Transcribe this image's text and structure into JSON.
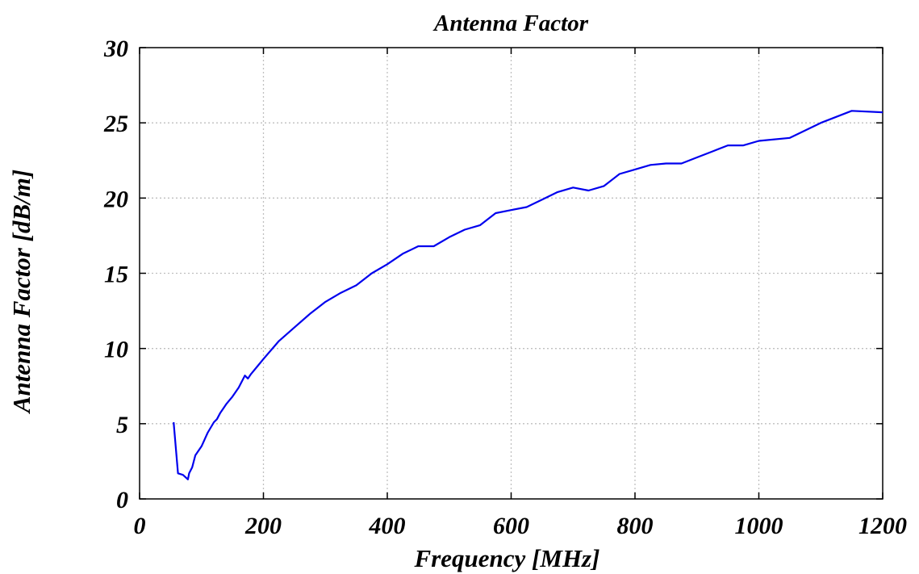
{
  "chart_data": {
    "type": "line",
    "title": "Antenna Factor",
    "xlabel": "Frequency [MHz]",
    "ylabel": "Antenna Factor [dB/m]",
    "xlim": [
      0,
      1200
    ],
    "ylim": [
      0,
      30
    ],
    "xticks": [
      0,
      200,
      400,
      600,
      800,
      1000,
      1200
    ],
    "yticks": [
      0,
      5,
      10,
      15,
      20,
      25,
      30
    ],
    "xtick_labels": [
      "0",
      "200",
      "400",
      "600",
      "800",
      "1000",
      "1200"
    ],
    "ytick_labels": [
      "0",
      "5",
      "10",
      "15",
      "20",
      "25",
      "30"
    ],
    "grid": true,
    "legend": "none",
    "series": [
      {
        "color": "#0000ee",
        "x": [
          55,
          62,
          70,
          78,
          80,
          85,
          90,
          100,
          110,
          120,
          125,
          130,
          140,
          150,
          160,
          170,
          175,
          180,
          190,
          200,
          225,
          250,
          275,
          300,
          325,
          350,
          375,
          400,
          425,
          450,
          475,
          500,
          525,
          550,
          575,
          600,
          625,
          650,
          675,
          700,
          725,
          750,
          775,
          800,
          825,
          850,
          875,
          900,
          925,
          950,
          975,
          1000,
          1050,
          1100,
          1150,
          1200
        ],
        "y": [
          5.1,
          1.7,
          1.6,
          1.3,
          1.7,
          2.1,
          2.9,
          3.5,
          4.4,
          5.1,
          5.3,
          5.7,
          6.3,
          6.8,
          7.4,
          8.2,
          8.0,
          8.3,
          8.8,
          9.3,
          10.5,
          11.4,
          12.3,
          13.1,
          13.7,
          14.2,
          15.0,
          15.6,
          16.3,
          16.8,
          16.8,
          17.4,
          17.9,
          18.2,
          19.0,
          19.2,
          19.4,
          19.9,
          20.4,
          20.7,
          20.5,
          20.8,
          21.6,
          21.9,
          22.2,
          22.3,
          22.3,
          22.7,
          23.1,
          23.5,
          23.5,
          23.8,
          24.0,
          25.0,
          25.8,
          25.7
        ]
      }
    ]
  }
}
